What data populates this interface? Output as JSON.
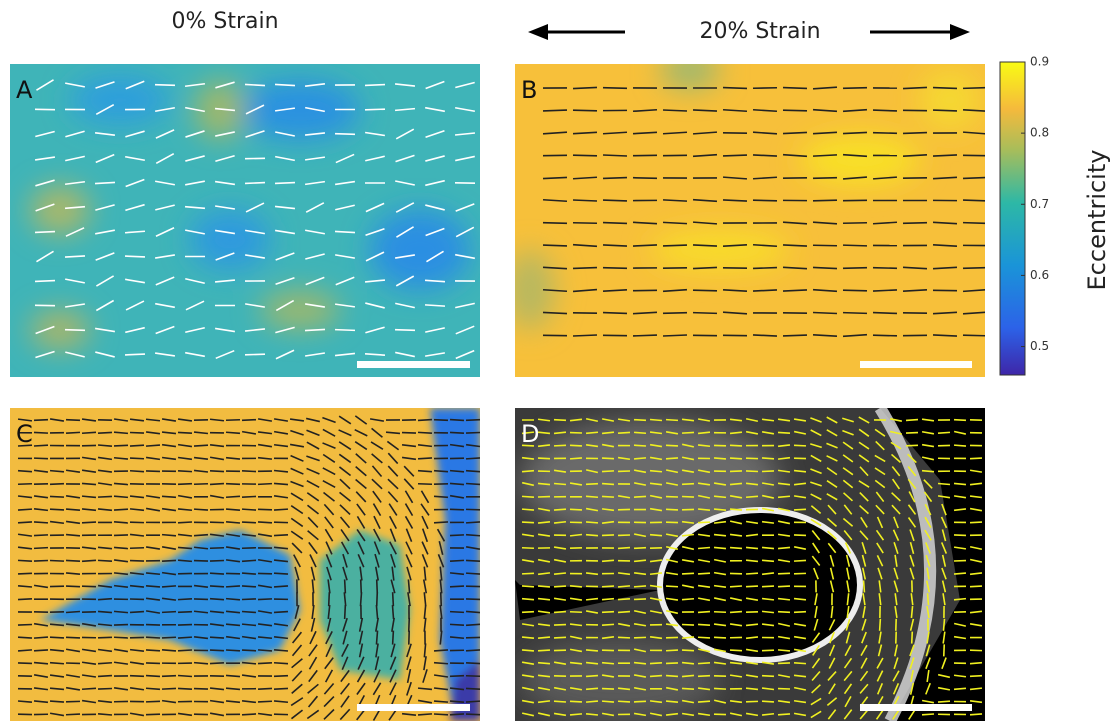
{
  "header": {
    "left_title": "0% Strain",
    "right_title": "20% Strain"
  },
  "panels": [
    {
      "label": "A"
    },
    {
      "label": "B"
    },
    {
      "label": "C"
    },
    {
      "label": "D"
    }
  ],
  "colorbar": {
    "label": "Eccentricity",
    "lim": [
      0.46,
      0.9
    ],
    "ticks": [
      0.5,
      0.6,
      0.7,
      0.8,
      0.9
    ]
  }
}
